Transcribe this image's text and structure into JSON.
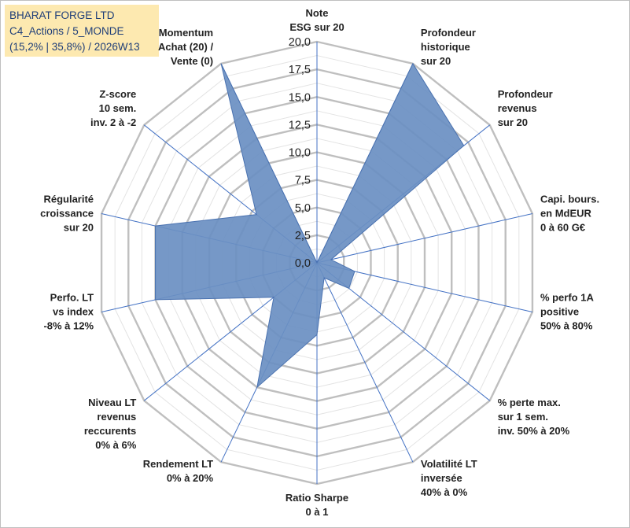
{
  "header": {
    "line1": "BHARAT FORGE LTD",
    "line2": "C4_Actions / 5_MONDE",
    "line3": "(15,2% | 35,8%) / 2026W13"
  },
  "colors": {
    "fill": "#6a8fc2",
    "stroke": "#4a72b0",
    "grid": "#bfbfbf",
    "spoke": "#4472c4",
    "header_bg": "#fde9b0",
    "header_text": "#1f3e78"
  },
  "chart_data": {
    "type": "radar",
    "title": "",
    "rmin": 0,
    "rmax": 20,
    "grid_levels": 16,
    "major_every": 2,
    "tick_labels": [
      "0,0",
      "2,5",
      "5,0",
      "7,5",
      "10,0",
      "12,5",
      "15,0",
      "17,5",
      "20,0"
    ],
    "axes": [
      {
        "label": [
          "Note",
          "ESG sur 20"
        ],
        "value": 0
      },
      {
        "label": [
          "Profondeur",
          "historique",
          "sur 20"
        ],
        "value": 20
      },
      {
        "label": [
          "Profondeur",
          "revenus",
          "sur 20"
        ],
        "value": 17
      },
      {
        "label": [
          "Capi. bours.",
          "en MdEUR",
          "0 à 60 G€"
        ],
        "value": 1.3
      },
      {
        "label": [
          "% perfo 1A",
          "positive",
          "50% à 80%"
        ],
        "value": 3.5
      },
      {
        "label": [
          "% perte max.",
          "sur 1 sem.",
          "inv. 50% à 20%"
        ],
        "value": 3.7
      },
      {
        "label": [
          "Volatilité LT",
          "inversée",
          "40% à 0%"
        ],
        "value": 1.5
      },
      {
        "label": [
          "Ratio Sharpe",
          "0 à 1"
        ],
        "value": 6.5
      },
      {
        "label": [
          "Rendement LT",
          "0% à 20%"
        ],
        "value": 12.5
      },
      {
        "label": [
          "Niveau LT",
          "revenus",
          "reccurents",
          "0% à 6%"
        ],
        "value": 5
      },
      {
        "label": [
          "Perfo. LT",
          "vs index",
          "-8% à 12%"
        ],
        "value": 15
      },
      {
        "label": [
          "Régularité",
          "croissance",
          "sur 20"
        ],
        "value": 15
      },
      {
        "label": [
          "Z-score",
          "10 sem.",
          "inv. 2 à -2"
        ],
        "value": 7
      },
      {
        "label": [
          "Momentum",
          "Achat (20) /",
          "Vente (0)"
        ],
        "value": 20
      }
    ]
  }
}
